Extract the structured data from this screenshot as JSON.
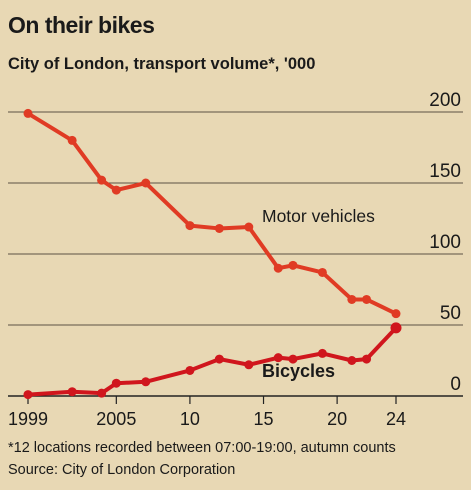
{
  "title": "On their bikes",
  "subtitle": "City of London, transport volume*, '000",
  "footnote": "*12 locations recorded between 07:00-19:00, autumn counts",
  "source": "Source: City of London Corporation",
  "chart_data": {
    "type": "line",
    "ylim": [
      0,
      200
    ],
    "xlim": [
      1999,
      2024
    ],
    "yticks": [
      {
        "v": 200,
        "label": "200"
      },
      {
        "v": 150,
        "label": "150"
      },
      {
        "v": 100,
        "label": "100"
      },
      {
        "v": 50,
        "label": "50"
      },
      {
        "v": 0,
        "label": "0"
      }
    ],
    "xticks": [
      {
        "v": 1999,
        "label": "1999"
      },
      {
        "v": 2005,
        "label": "2005"
      },
      {
        "v": 2010,
        "label": "10"
      },
      {
        "v": 2015,
        "label": "15"
      },
      {
        "v": 2020,
        "label": "20"
      },
      {
        "v": 2024,
        "label": "24"
      }
    ],
    "grid": true,
    "colors": {
      "motor": "#e03b24",
      "bicycles": "#d0161d",
      "grid": "#5b5244",
      "text": "#1a1a1a"
    },
    "series": [
      {
        "name": "Motor vehicles",
        "x": [
          1999,
          2002,
          2004,
          2005,
          2007,
          2010,
          2012,
          2014,
          2016,
          2017,
          2019,
          2021,
          2022,
          2024
        ],
        "values": [
          199,
          180,
          152,
          145,
          150,
          120,
          118,
          119,
          90,
          92,
          87,
          68,
          68,
          58
        ]
      },
      {
        "name": "Bicycles",
        "x": [
          1999,
          2002,
          2004,
          2005,
          2007,
          2010,
          2012,
          2014,
          2016,
          2017,
          2019,
          2021,
          2022,
          2024
        ],
        "values": [
          1,
          3,
          2,
          9,
          10,
          18,
          26,
          22,
          27,
          26,
          30,
          25,
          26,
          48
        ]
      }
    ]
  }
}
